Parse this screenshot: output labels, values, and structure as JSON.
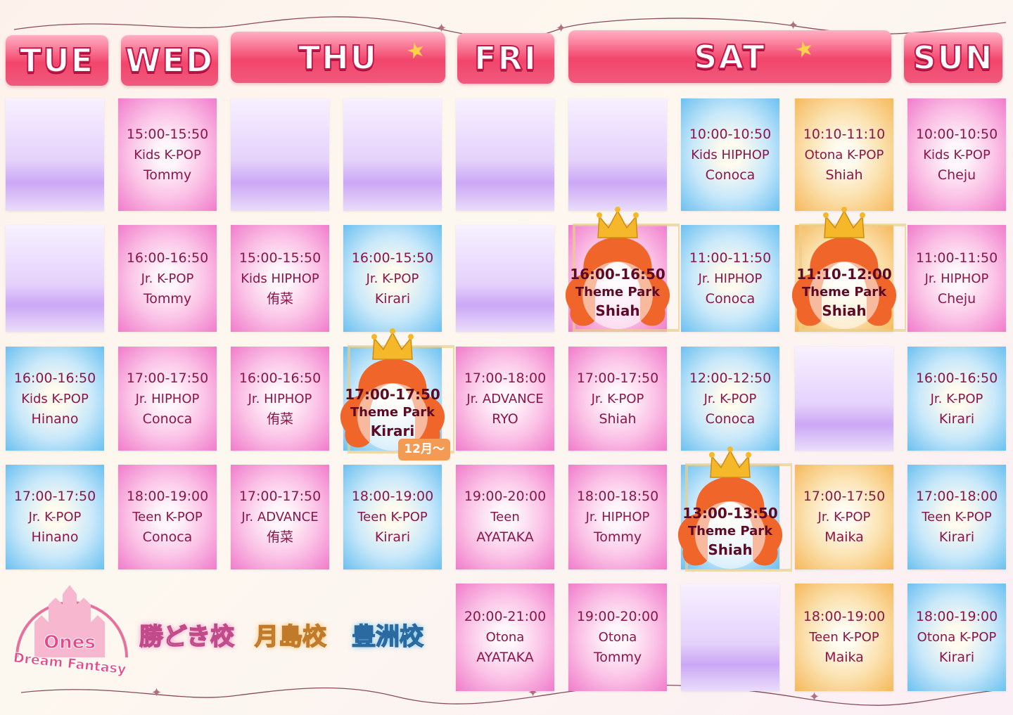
{
  "days": [
    "TUE",
    "WED",
    "THU",
    "FRI",
    "SAT",
    "SUN"
  ],
  "schools": {
    "pink": {
      "name": "勝どき校",
      "color": "#f06fb8"
    },
    "orange": {
      "name": "月島校",
      "color": "#f6b03e"
    },
    "blue": {
      "name": "豊洲校",
      "color": "#4ab8ee"
    }
  },
  "logo": {
    "line1": "Ones",
    "line2": "Dream Fantasy"
  },
  "columns": [
    {
      "day": "TUE",
      "cells": [
        {
          "school": "empty"
        },
        {
          "school": "empty"
        },
        {
          "school": "blue",
          "time": "16:00-16:50",
          "class": "Kids K-POP",
          "teacher": "Hinano"
        },
        {
          "school": "blue",
          "time": "17:00-17:50",
          "class": "Jr. K-POP",
          "teacher": "Hinano"
        },
        null
      ]
    },
    {
      "day": "WED",
      "cells": [
        {
          "school": "pink",
          "time": "15:00-15:50",
          "class": "Kids K-POP",
          "teacher": "Tommy"
        },
        {
          "school": "pink",
          "time": "16:00-16:50",
          "class": "Jr. K-POP",
          "teacher": "Tommy"
        },
        {
          "school": "pink",
          "time": "17:00-17:50",
          "class": "Jr. HIPHOP",
          "teacher": "Conoca"
        },
        {
          "school": "pink",
          "time": "18:00-19:00",
          "class": "Teen K-POP",
          "teacher": "Conoca"
        },
        null
      ]
    },
    {
      "day": "THU",
      "cells": [
        {
          "school": "empty"
        },
        {
          "school": "pink",
          "time": "15:00-15:50",
          "class": "Kids HIPHOP",
          "teacher": "侑菜"
        },
        {
          "school": "pink",
          "time": "16:00-16:50",
          "class": "Jr. HIPHOP",
          "teacher": "侑菜"
        },
        {
          "school": "pink",
          "time": "17:00-17:50",
          "class": "Jr. ADVANCE",
          "teacher": "侑菜"
        },
        null
      ]
    },
    {
      "day": "THU",
      "cells": [
        {
          "school": "empty"
        },
        {
          "school": "blue",
          "time": "16:00-15:50",
          "class": "Jr. K-POP",
          "teacher": "Kirari"
        },
        {
          "school": "blue",
          "time": "17:00-17:50",
          "class": "Theme Park",
          "teacher": "Kirari",
          "special": true,
          "badge": "12月〜"
        },
        {
          "school": "blue",
          "time": "18:00-19:00",
          "class": "Teen K-POP",
          "teacher": "Kirari"
        },
        null
      ]
    },
    {
      "day": "FRI",
      "cells": [
        {
          "school": "empty"
        },
        {
          "school": "empty"
        },
        {
          "school": "pink",
          "time": "17:00-18:00",
          "class": "Jr. ADVANCE",
          "teacher": "RYO"
        },
        {
          "school": "pink",
          "time": "19:00-20:00",
          "class": "Teen",
          "teacher": "AYATAKA"
        },
        {
          "school": "pink",
          "time": "20:00-21:00",
          "class": "Otona",
          "teacher": "AYATAKA"
        }
      ]
    },
    {
      "day": "SAT",
      "cells": [
        {
          "school": "empty"
        },
        {
          "school": "pink",
          "time": "16:00-16:50",
          "class": "Theme Park",
          "teacher": "Shiah",
          "special": true
        },
        {
          "school": "pink",
          "time": "17:00-17:50",
          "class": "Jr. K-POP",
          "teacher": "Shiah"
        },
        {
          "school": "pink",
          "time": "18:00-18:50",
          "class": "Jr. HIPHOP",
          "teacher": "Tommy"
        },
        {
          "school": "pink",
          "time": "19:00-20:00",
          "class": "Otona",
          "teacher": "Tommy"
        }
      ]
    },
    {
      "day": "SAT",
      "cells": [
        {
          "school": "blue",
          "time": "10:00-10:50",
          "class": "Kids HIPHOP",
          "teacher": "Conoca"
        },
        {
          "school": "blue",
          "time": "11:00-11:50",
          "class": "Jr. HIPHOP",
          "teacher": "Conoca"
        },
        {
          "school": "blue",
          "time": "12:00-12:50",
          "class": "Jr. K-POP",
          "teacher": "Conoca"
        },
        {
          "school": "blue",
          "time": "13:00-13:50",
          "class": "Theme Park",
          "teacher": "Shiah",
          "special": true
        },
        {
          "school": "empty"
        }
      ]
    },
    {
      "day": "SAT",
      "cells": [
        {
          "school": "orange",
          "time": "10:10-11:10",
          "class": "Otona K-POP",
          "teacher": "Shiah"
        },
        {
          "school": "orange",
          "time": "11:10-12:00",
          "class": "Theme Park",
          "teacher": "Shiah",
          "special": true
        },
        {
          "school": "empty"
        },
        {
          "school": "orange",
          "time": "17:00-17:50",
          "class": "Jr. K-POP",
          "teacher": "Maika"
        },
        {
          "school": "orange",
          "time": "18:00-19:00",
          "class": "Teen K-POP",
          "teacher": "Maika"
        }
      ]
    },
    {
      "day": "SUN",
      "cells": [
        {
          "school": "pink",
          "time": "10:00-10:50",
          "class": "Kids K-POP",
          "teacher": "Cheju"
        },
        {
          "school": "pink",
          "time": "11:00-11:50",
          "class": "Jr. HIPHOP",
          "teacher": "Cheju"
        },
        {
          "school": "blue",
          "time": "16:00-16:50",
          "class": "Jr. K-POP",
          "teacher": "Kirari"
        },
        {
          "school": "blue",
          "time": "17:00-18:00",
          "class": "Teen K-POP",
          "teacher": "Kirari"
        },
        {
          "school": "blue",
          "time": "18:00-19:00",
          "class": "Otona K-POP",
          "teacher": "Kirari"
        }
      ]
    }
  ]
}
